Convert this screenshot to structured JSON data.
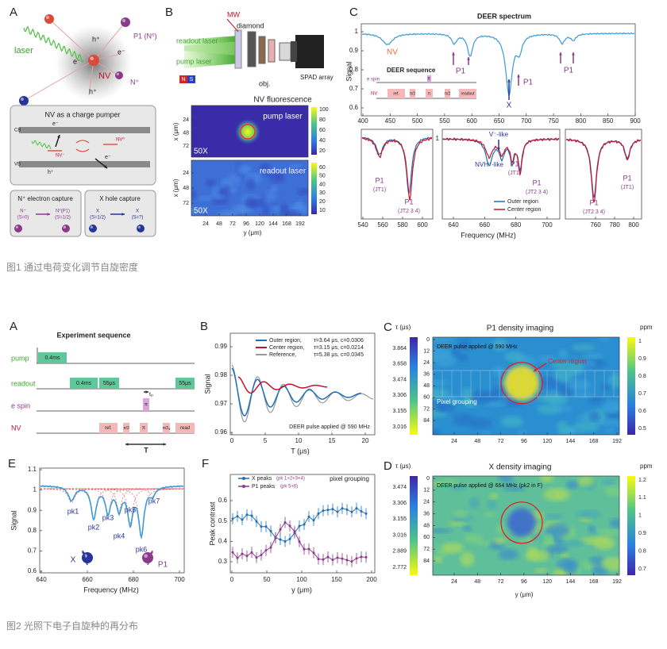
{
  "figure1": {
    "caption": "图1 通过电荷变化调节自旋密度",
    "panel_a": {
      "letter": "A",
      "laser": "laser",
      "nv": "NV",
      "h_plus": "h⁺",
      "e_minus": "e⁻",
      "p1": "P1 (N⁰)",
      "n_plus": "N⁺",
      "x": "X (S=1/2)",
      "pumper": {
        "title": "NV as a charge pumper",
        "cb": "CB",
        "vb": "VB",
        "e_minus": "e⁻",
        "h_plus": "h⁺",
        "nv_minus": "NV⁻",
        "nv_zero": "NV⁰"
      },
      "electron_capture": {
        "title": "N⁺ electron capture",
        "from": "N⁺",
        "from_spin": "(S=0)",
        "to": "N⁰(P1)",
        "to_spin": "(S=1/2)"
      },
      "hole_capture": {
        "title": "X hole capture",
        "from": "X",
        "from_spin": "(S=1/2)",
        "to": "X",
        "to_spin": "(S=?)"
      }
    },
    "panel_b": {
      "letter": "B",
      "mw": "MW",
      "diamond": "diamond",
      "readout_laser": "readout laser",
      "pump_laser": "pump laser",
      "magnet_n": "N",
      "magnet_s": "S",
      "objective": "obj.",
      "spad": "SPAD array",
      "map_title": "NV fluorescence",
      "map1_label": "pump laser",
      "map2_label": "readout laser",
      "magnification": "50X",
      "y_axis_label": "x (μm)",
      "x_axis_label": "y (μm)",
      "yticks": [
        24,
        48,
        72
      ],
      "xticks": [
        24,
        48,
        72,
        96,
        120,
        144,
        168,
        192
      ],
      "colorbar1_ticks": [
        100,
        80,
        60,
        40,
        20
      ],
      "colorbar2_ticks": [
        60,
        50,
        40,
        30,
        20,
        10
      ]
    },
    "panel_c": {
      "letter": "C",
      "title": "DEER spectrum",
      "y_axis_label": "Signal",
      "xticks": [
        400,
        450,
        500,
        550,
        600,
        650,
        700,
        750,
        800,
        850,
        900
      ],
      "yticks": [
        1,
        0.9,
        0.8,
        0.7,
        0.6
      ],
      "nv": "NV",
      "p1": "P1",
      "x": "X",
      "sequence": {
        "title": "DEER sequence",
        "e_spin": "e spin",
        "nv": "NV",
        "ref": "ref.",
        "pi_half": "π/2",
        "pi": "π",
        "readout": "readout"
      },
      "zoom": {
        "x_axis_label": "Frequency (MHz)",
        "left_xticks": [
          540,
          560,
          580,
          600
        ],
        "middle_xticks": [
          640,
          660,
          680,
          700
        ],
        "middle_yticks": [
          1
        ],
        "right_xticks": [
          760,
          780,
          800
        ],
        "p1": "P1",
        "jt1": "(JT1)",
        "jt234": "(JT2 3 4)",
        "v_like": "V⁻-like",
        "nvh_like": "NVH⁻-like",
        "legend": [
          "Outer region",
          "Center region"
        ]
      }
    }
  },
  "figure2": {
    "caption": "图2 光照下电子自旋种的再分布",
    "panel_a": {
      "letter": "A",
      "title": "Experiment sequence",
      "rows": [
        "pump",
        "readout",
        "e spin",
        "NV"
      ],
      "pump_duration": "0.4ms",
      "readout_durations": [
        "0.4ms",
        "55μs",
        "55μs"
      ],
      "pi": "π",
      "pi_half": "π/2",
      "pi_half_phi": "π/2ᵩ",
      "t_p": "tₚ",
      "ref": "ref.",
      "read": "read",
      "period": "T"
    },
    "panel_b": {
      "letter": "B",
      "y_axis_label": "Signal",
      "x_axis_label": "T (μs)",
      "yticks": [
        0.99,
        0.98,
        0.97,
        0.96
      ],
      "xticks": [
        0,
        5,
        10,
        15,
        20
      ],
      "legend": [
        {
          "name": "Outer region,",
          "fit": "τ=3.64 μs, c=0.0306",
          "color": "#1f6fb5"
        },
        {
          "name": "Center region,",
          "fit": "τ=3.15 μs, c=0.0214",
          "color": "#c8102e"
        },
        {
          "name": "Reference,",
          "fit": "τ=5.38 μs, c=0.0345",
          "color": "#999999"
        }
      ],
      "note": "DEER pulse applied @ 590 MHz"
    },
    "panel_c": {
      "letter": "C",
      "title": "P1 density imaging",
      "tau_label": "τ (μs)",
      "tau_ticks": [
        3.864,
        3.658,
        3.474,
        3.306,
        3.155,
        3.016
      ],
      "yticks": [
        0,
        12,
        24,
        36,
        48,
        60,
        72,
        84
      ],
      "xticks": [
        24,
        48,
        72,
        96,
        120,
        144,
        168,
        192
      ],
      "ppm_label": "ppm",
      "ppm_ticks": [
        1,
        0.9,
        0.8,
        0.7,
        0.6,
        0.5
      ],
      "note": "DEER pulse applied @ 590 MHz",
      "center": "Center region",
      "grouping": "Pixel grouping"
    },
    "panel_d": {
      "letter": "D",
      "title": "X density imaging",
      "tau_label": "τ (μs)",
      "tau_ticks": [
        3.474,
        3.306,
        3.155,
        3.016,
        2.889,
        2.772
      ],
      "yticks": [
        0,
        12,
        24,
        36,
        48,
        60,
        72,
        84
      ],
      "xticks": [
        24,
        48,
        72,
        96,
        120,
        144,
        168,
        192
      ],
      "x_axis_label": "y (μm)",
      "ppm_label": "ppm",
      "ppm_ticks": [
        1.2,
        1.1,
        1,
        0.9,
        0.8,
        0.7
      ],
      "note": "DEER pulse applied @ 664 MHz (pk2 in F)"
    },
    "panel_e": {
      "letter": "E",
      "y_axis_label": "Signal",
      "x_axis_label": "Frequency (MHz)",
      "yticks": [
        1.1,
        1,
        0.9,
        0.8,
        0.7,
        0.6
      ],
      "xticks": [
        640,
        660,
        680,
        700
      ],
      "peaks": [
        "pk1",
        "pk2",
        "pk3",
        "pk4",
        "pk5",
        "pk6",
        "pk7"
      ],
      "x": "X",
      "p1": "P1"
    },
    "panel_f": {
      "letter": "F",
      "y_axis_label": "Peak contrast",
      "x_axis_label": "y (μm)",
      "yticks": [
        0.6,
        0.5,
        0.4,
        0.3
      ],
      "xticks": [
        0,
        50,
        100,
        150,
        200
      ],
      "legend": [
        {
          "name": "X peaks",
          "detail": "(pk 1+2+3+4)",
          "color": "#1f6fb5"
        },
        {
          "name": "P1 peaks",
          "detail": "(pk 5+6)",
          "color": "#8b3a8b"
        }
      ],
      "grouping": "pixel grouping"
    }
  }
}
